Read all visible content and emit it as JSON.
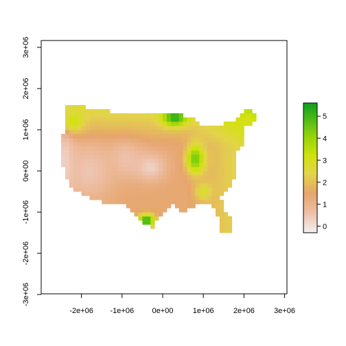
{
  "chart_data": {
    "type": "heatmap",
    "title": "",
    "xlabel": "",
    "ylabel": "",
    "xlim": [
      -3000000,
      3000000
    ],
    "ylim": [
      -3000000,
      3200000
    ],
    "x_ticks": [
      {
        "value": -2000000,
        "label": "-2e+06"
      },
      {
        "value": -1000000,
        "label": "-1e+06"
      },
      {
        "value": 0,
        "label": "0e+00"
      },
      {
        "value": 1000000,
        "label": "1e+06"
      },
      {
        "value": 2000000,
        "label": "2e+06"
      },
      {
        "value": 3000000,
        "label": "3e+06"
      }
    ],
    "y_ticks": [
      {
        "value": -3000000,
        "label": "-3e+06"
      },
      {
        "value": -2000000,
        "label": "-2e+06"
      },
      {
        "value": -1000000,
        "label": "-1e+06"
      },
      {
        "value": 0,
        "label": "0e+00"
      },
      {
        "value": 1000000,
        "label": "1e+06"
      },
      {
        "value": 2000000,
        "label": "2e+06"
      },
      {
        "value": 3000000,
        "label": "3e+06"
      }
    ],
    "legend": {
      "placement": "right",
      "min": -0.3,
      "max": 5.6,
      "ticks": [
        {
          "value": 0,
          "label": "0"
        },
        {
          "value": 1,
          "label": "1"
        },
        {
          "value": 2,
          "label": "2"
        },
        {
          "value": 3,
          "label": "3"
        },
        {
          "value": 4,
          "label": "4"
        },
        {
          "value": 5,
          "label": "5"
        }
      ]
    },
    "color_stops": [
      {
        "value": -0.3,
        "color": "#f2f2f2"
      },
      {
        "value": 0.6,
        "color": "#eec0aa"
      },
      {
        "value": 1.5,
        "color": "#e6a56b"
      },
      {
        "value": 2.4,
        "color": "#e3d44a"
      },
      {
        "value": 3.2,
        "color": "#d2e20e"
      },
      {
        "value": 4.2,
        "color": "#8cd20c"
      },
      {
        "value": 5.6,
        "color": "#0ca01e"
      }
    ],
    "grid": false,
    "cell_size": 100000,
    "features": [
      {
        "x": -2400000,
        "y": 200000,
        "value": 0.2,
        "sx": 250000,
        "sy": 900000
      },
      {
        "x": -1800000,
        "y": 0,
        "value": 0.5,
        "sx": 600000,
        "sy": 700000
      },
      {
        "x": -900000,
        "y": 300000,
        "value": 0.6,
        "sx": 400000,
        "sy": 450000
      },
      {
        "x": -300000,
        "y": 100000,
        "value": 0.3,
        "sx": 400000,
        "sy": 350000
      },
      {
        "x": 300000,
        "y": 1300000,
        "value": 5.3,
        "sx": 300000,
        "sy": 200000
      },
      {
        "x": 800000,
        "y": 300000,
        "value": 4.5,
        "sx": 220000,
        "sy": 350000
      },
      {
        "x": -400000,
        "y": -1200000,
        "value": 5.4,
        "sx": 200000,
        "sy": 150000
      },
      {
        "x": -2200000,
        "y": 1200000,
        "value": 3.2,
        "sx": 250000,
        "sy": 250000
      },
      {
        "x": 2100000,
        "y": 1200000,
        "value": 3.0,
        "sx": 250000,
        "sy": 250000
      },
      {
        "x": 1000000,
        "y": -500000,
        "value": 2.8,
        "sx": 200000,
        "sy": 200000
      }
    ]
  }
}
